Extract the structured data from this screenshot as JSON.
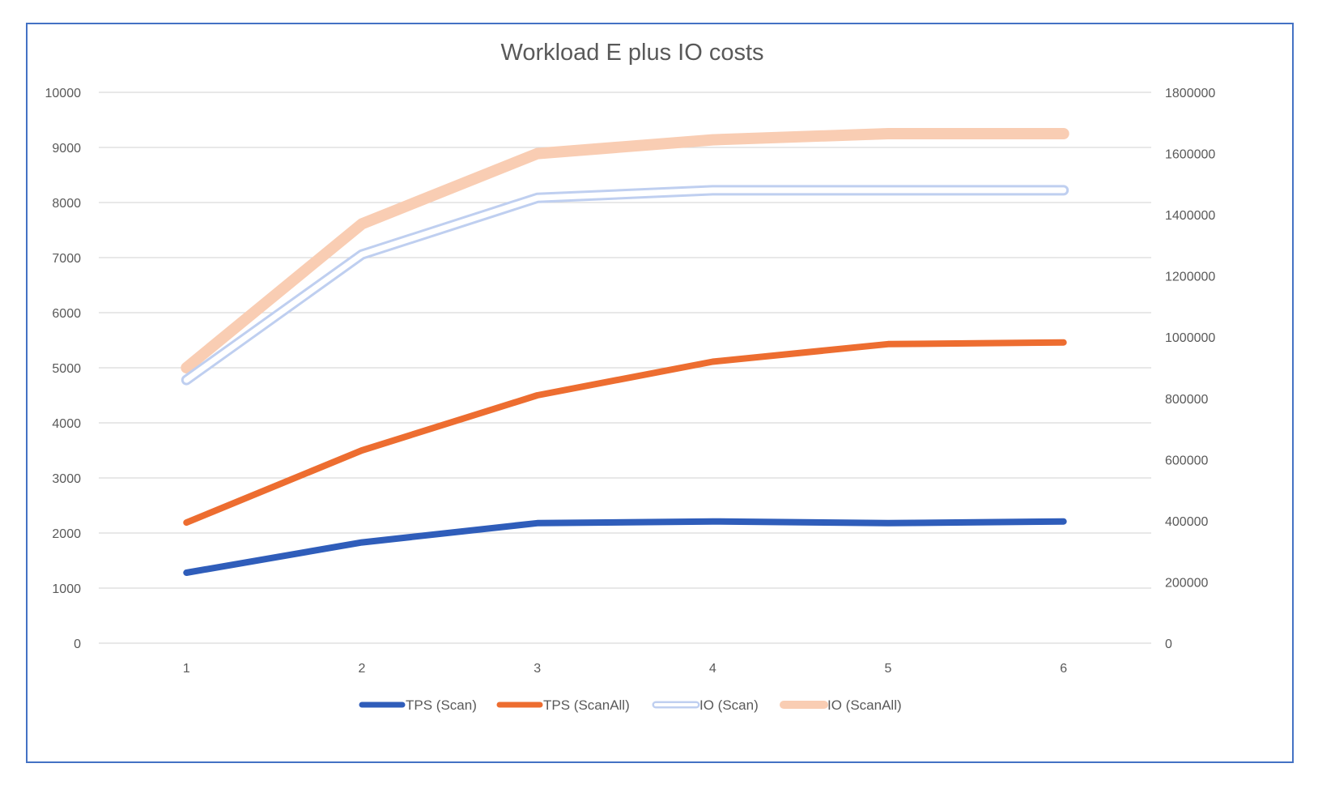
{
  "chart_data": {
    "type": "line",
    "title": "Workload E plus IO costs",
    "categories": [
      "1",
      "2",
      "3",
      "4",
      "5",
      "6"
    ],
    "y_left": {
      "ylim": [
        0,
        10000
      ],
      "ticks": [
        "0",
        "1000",
        "2000",
        "3000",
        "4000",
        "5000",
        "6000",
        "7000",
        "8000",
        "9000",
        "10000"
      ]
    },
    "y_right": {
      "ylim": [
        0,
        1800000
      ],
      "ticks": [
        "0",
        "200000",
        "400000",
        "600000",
        "800000",
        "1000000",
        "1200000",
        "1400000",
        "1600000",
        "1800000"
      ]
    },
    "grid": true,
    "legend_position": "bottom",
    "series": [
      {
        "name": "TPS (Scan)",
        "axis": "left",
        "color": "#2f5dba",
        "style": "solid",
        "values": [
          1280,
          1830,
          2180,
          2210,
          2180,
          2210
        ]
      },
      {
        "name": "TPS (ScanAll)",
        "axis": "left",
        "color": "#ed6d30",
        "style": "solid",
        "values": [
          2190,
          3500,
          4500,
          5110,
          5430,
          5460
        ]
      },
      {
        "name": "IO (Scan)",
        "axis": "right",
        "color": "#bfcff0",
        "style": "double",
        "values": [
          860000,
          1270000,
          1455000,
          1480000,
          1480000,
          1480000
        ]
      },
      {
        "name": "IO (ScanAll)",
        "axis": "right",
        "color": "#f9cdb3",
        "style": "thick",
        "values": [
          900000,
          1370000,
          1600000,
          1645000,
          1665000,
          1665000
        ]
      }
    ]
  }
}
